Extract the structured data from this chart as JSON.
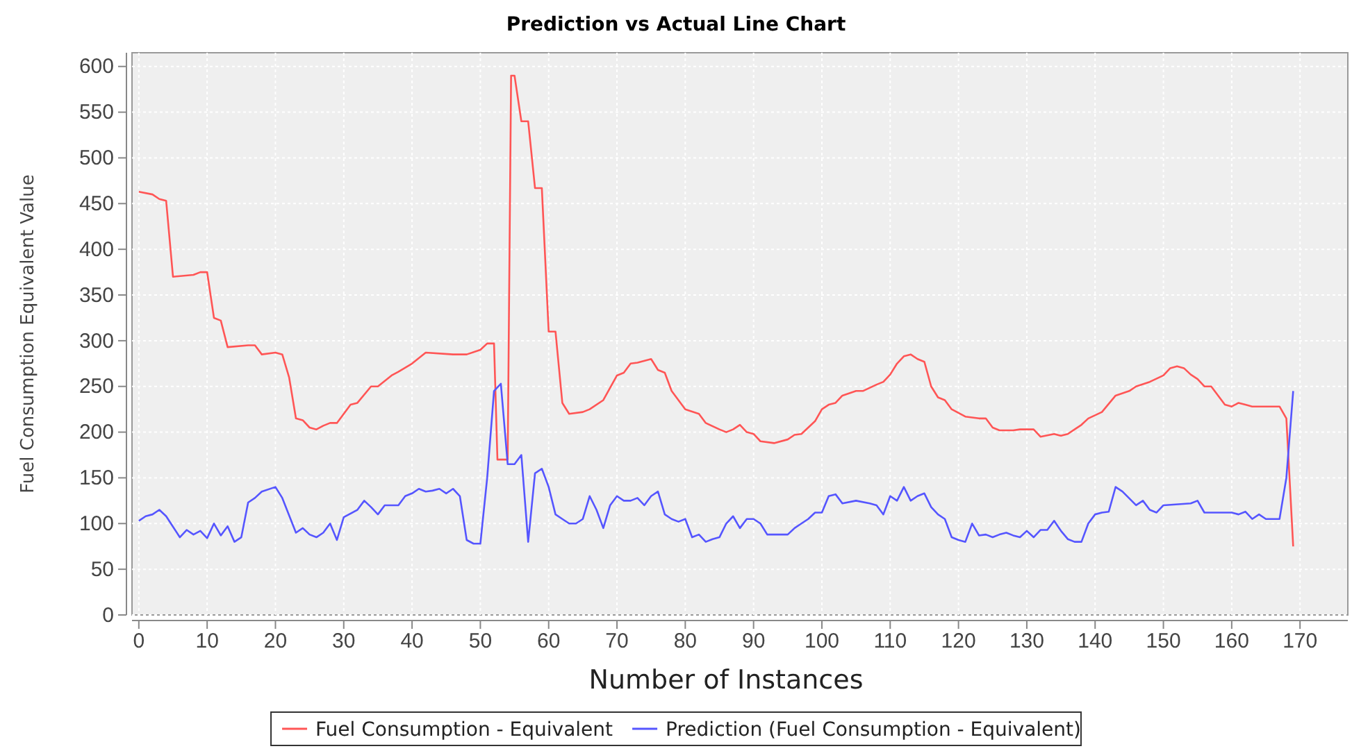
{
  "chart_data": {
    "type": "line",
    "title": "Prediction vs Actual Line Chart",
    "xlabel": "Number of Instances",
    "ylabel": "Fuel Consumption Equivalent Value",
    "xlim": [
      -1,
      177
    ],
    "xticks": [
      0,
      10,
      20,
      30,
      40,
      50,
      60,
      70,
      80,
      90,
      100,
      110,
      120,
      130,
      140,
      150,
      160,
      170
    ],
    "ylim": [
      0,
      615
    ],
    "yticks": [
      0,
      50,
      100,
      150,
      200,
      250,
      300,
      350,
      400,
      450,
      500,
      550,
      600
    ],
    "grid": true,
    "legend": "bottom",
    "marker": "none",
    "line_style": "solid",
    "series": [
      {
        "name": "Fuel Consumption - Equivalent",
        "color": "#ff5555",
        "x": [
          0,
          2,
          3,
          4,
          5,
          8,
          9,
          10,
          11,
          12,
          13,
          16,
          17,
          18,
          20,
          21,
          22,
          23,
          24,
          25,
          26,
          27,
          28,
          29,
          30,
          31,
          32,
          34,
          35,
          37,
          38,
          40,
          42,
          46,
          48,
          50,
          51,
          52,
          52.5,
          54,
          54.5,
          55,
          56,
          57,
          58,
          59,
          60,
          61,
          62,
          63,
          65,
          66,
          68,
          70,
          71,
          72,
          73,
          75,
          76,
          77,
          78,
          80,
          82,
          83,
          85,
          86,
          87,
          88,
          89,
          90,
          91,
          93,
          95,
          96,
          97,
          99,
          100,
          101,
          102,
          103,
          105,
          106,
          108,
          109,
          110,
          111,
          112,
          113,
          114,
          115,
          116,
          117,
          118,
          119,
          121,
          123,
          124,
          125,
          126,
          128,
          129,
          131,
          132,
          134,
          135,
          136,
          137,
          138,
          139,
          141,
          143,
          145,
          146,
          148,
          150,
          151,
          152,
          153,
          154,
          155,
          156,
          157,
          159,
          160,
          161,
          162,
          163,
          167,
          168,
          169
        ],
        "values": [
          463,
          460,
          455,
          453,
          370,
          372,
          375,
          375,
          325,
          322,
          293,
          295,
          295,
          285,
          287,
          285,
          260,
          215,
          213,
          205,
          203,
          207,
          210,
          210,
          220,
          230,
          232,
          250,
          250,
          262,
          266,
          275,
          287,
          285,
          285,
          290,
          297,
          297,
          170,
          170,
          590,
          590,
          540,
          540,
          467,
          467,
          310,
          310,
          232,
          220,
          222,
          225,
          235,
          262,
          265,
          275,
          276,
          280,
          268,
          265,
          245,
          225,
          220,
          210,
          203,
          200,
          203,
          208,
          200,
          198,
          190,
          188,
          192,
          197,
          198,
          212,
          225,
          230,
          232,
          240,
          245,
          245,
          252,
          255,
          263,
          275,
          283,
          285,
          280,
          277,
          250,
          238,
          235,
          225,
          217,
          215,
          215,
          205,
          202,
          202,
          203,
          203,
          195,
          198,
          196,
          198,
          203,
          208,
          215,
          222,
          240,
          245,
          250,
          255,
          262,
          270,
          272,
          270,
          263,
          258,
          250,
          250,
          230,
          228,
          232,
          230,
          228,
          228,
          215,
          75
        ]
      },
      {
        "name": "Prediction (Fuel Consumption - Equivalent)",
        "color": "#5555ff",
        "x": [
          0,
          1,
          2,
          3,
          4,
          6,
          7,
          8,
          9,
          10,
          11,
          12,
          13,
          14,
          15,
          16,
          17,
          18,
          20,
          21,
          23,
          24,
          25,
          26,
          27,
          28,
          29,
          30,
          32,
          33,
          34,
          35,
          36,
          38,
          39,
          40,
          41,
          42,
          43,
          44,
          45,
          46,
          47,
          48,
          49,
          50,
          51,
          52,
          53,
          54,
          55,
          56,
          57,
          58,
          59,
          60,
          61,
          62,
          63,
          64,
          65,
          66,
          67,
          68,
          69,
          70,
          71,
          72,
          73,
          74,
          75,
          76,
          77,
          78,
          79,
          80,
          81,
          82,
          83,
          84,
          85,
          86,
          87,
          88,
          89,
          90,
          91,
          92,
          95,
          96,
          97,
          98,
          99,
          100,
          101,
          102,
          103,
          105,
          107,
          108,
          109,
          110,
          111,
          112,
          113,
          114,
          115,
          116,
          117,
          118,
          119,
          120,
          121,
          122,
          123,
          124,
          125,
          126,
          127,
          128,
          129,
          130,
          131,
          132,
          133,
          134,
          135,
          136,
          137,
          138,
          139,
          140,
          141,
          142,
          143,
          144,
          146,
          147,
          148,
          149,
          150,
          154,
          155,
          156,
          160,
          161,
          162,
          163,
          164,
          165,
          167,
          168,
          169
        ],
        "values": [
          103,
          108,
          110,
          115,
          108,
          85,
          93,
          88,
          92,
          84,
          100,
          87,
          97,
          80,
          85,
          123,
          128,
          135,
          140,
          128,
          90,
          95,
          88,
          85,
          90,
          100,
          82,
          107,
          115,
          125,
          118,
          110,
          120,
          120,
          130,
          133,
          138,
          135,
          136,
          138,
          133,
          138,
          130,
          82,
          78,
          78,
          150,
          245,
          253,
          165,
          165,
          175,
          80,
          155,
          160,
          140,
          110,
          105,
          100,
          100,
          105,
          130,
          115,
          95,
          120,
          130,
          125,
          125,
          128,
          120,
          130,
          135,
          110,
          105,
          102,
          105,
          85,
          88,
          80,
          83,
          85,
          100,
          108,
          95,
          105,
          105,
          100,
          88,
          88,
          95,
          100,
          105,
          112,
          112,
          130,
          132,
          122,
          125,
          122,
          120,
          110,
          130,
          125,
          140,
          125,
          130,
          133,
          118,
          110,
          105,
          85,
          82,
          80,
          100,
          87,
          88,
          85,
          88,
          90,
          87,
          85,
          92,
          85,
          93,
          93,
          103,
          92,
          83,
          80,
          80,
          100,
          110,
          112,
          113,
          140,
          135,
          120,
          125,
          115,
          112,
          120,
          122,
          125,
          112,
          112,
          110,
          113,
          105,
          110,
          105,
          105,
          150,
          245
        ]
      }
    ]
  }
}
